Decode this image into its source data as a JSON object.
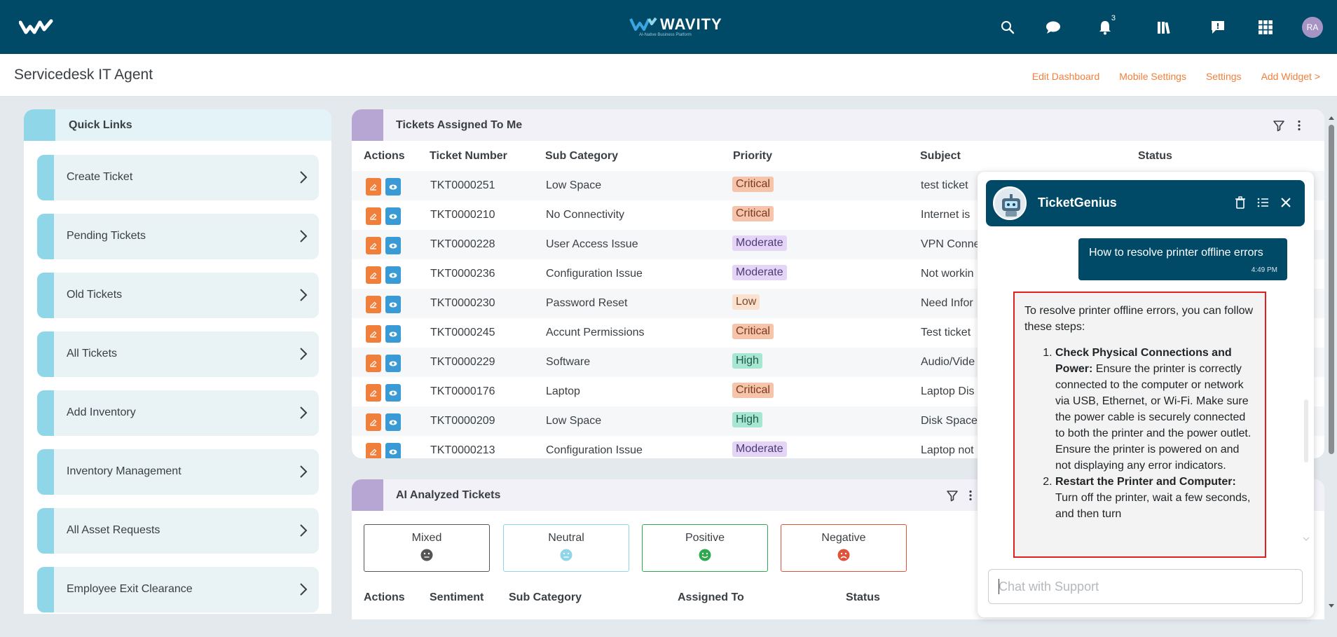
{
  "topbar": {
    "brand": "WAVITY",
    "tagline": "AI-Native Business Platform",
    "notification_count": "3",
    "user_initials": "RA",
    "icons": [
      "search-icon",
      "chat-bubble-icon",
      "bell-icon",
      "library-icon",
      "feedback-icon",
      "apps-grid-icon"
    ]
  },
  "header": {
    "title": "Servicedesk IT Agent",
    "links": [
      "Edit Dashboard",
      "Mobile Settings",
      "Settings",
      "Add Widget >"
    ]
  },
  "quick_links": {
    "title": "Quick Links",
    "items": [
      "Create Ticket",
      "Pending Tickets",
      "Old Tickets",
      "All Tickets",
      "Add Inventory",
      "Inventory Management",
      "All Asset Requests",
      "Employee Exit Clearance"
    ]
  },
  "tickets": {
    "title": "Tickets Assigned To Me",
    "columns": [
      "Actions",
      "Ticket Number",
      "Sub Category",
      "Priority",
      "Subject",
      "Status"
    ],
    "rows": [
      {
        "number": "TKT0000251",
        "sub": "Low Space",
        "priority": "Critical",
        "subject": "test ticket"
      },
      {
        "number": "TKT0000210",
        "sub": "No Connectivity",
        "priority": "Critical",
        "subject": "Internet is"
      },
      {
        "number": "TKT0000228",
        "sub": "User Access Issue",
        "priority": "Moderate",
        "subject": "VPN Conne"
      },
      {
        "number": "TKT0000236",
        "sub": "Configuration Issue",
        "priority": "Moderate",
        "subject": "Not workin"
      },
      {
        "number": "TKT0000230",
        "sub": "Password Reset",
        "priority": "Low",
        "subject": "Need Infor"
      },
      {
        "number": "TKT0000245",
        "sub": "Accunt Permissions",
        "priority": "Critical",
        "subject": "Test ticket"
      },
      {
        "number": "TKT0000229",
        "sub": "Software",
        "priority": "High",
        "subject": "Audio/Vide"
      },
      {
        "number": "TKT0000176",
        "sub": "Laptop",
        "priority": "Critical",
        "subject": "Laptop Dis"
      },
      {
        "number": "TKT0000209",
        "sub": "Low Space",
        "priority": "High",
        "subject": "Disk Space"
      },
      {
        "number": "TKT0000213",
        "sub": "Configuration Issue",
        "priority": "Moderate",
        "subject": "Laptop not"
      }
    ]
  },
  "ai_tickets": {
    "title": "AI Analyzed Tickets",
    "sentiments": [
      {
        "label": "Mixed",
        "color": "#555555"
      },
      {
        "label": "Neutral",
        "color": "#8fd6e8"
      },
      {
        "label": "Positive",
        "color": "#2fa84f"
      },
      {
        "label": "Negative",
        "color": "#e0533a"
      }
    ],
    "columns": [
      "Actions",
      "Sentiment",
      "Sub Category",
      "Assigned To",
      "Status"
    ]
  },
  "chat": {
    "name": "TicketGenius",
    "user_message": "How to resolve printer offline errors",
    "user_time": "4:49 PM",
    "bot_intro": "To resolve printer offline errors, you can follow these steps:",
    "steps": [
      {
        "title": "Check Physical Connections and Power:",
        "text": " Ensure the printer is correctly connected to the computer or network via USB, Ethernet, or Wi-Fi. Make sure the power cable is securely connected to both the printer and the power outlet. Ensure the printer is powered on and not displaying any error indicators."
      },
      {
        "title": "Restart the Printer and Computer:",
        "text": " Turn off the printer, wait a few seconds, and then turn"
      }
    ],
    "input_placeholder": "Chat with Support"
  },
  "colors": {
    "topbar": "#004a68",
    "accent_orange": "#f0803c",
    "quick_link_accent": "#8fd6e8",
    "panel_accent": "#b7a6d4"
  }
}
